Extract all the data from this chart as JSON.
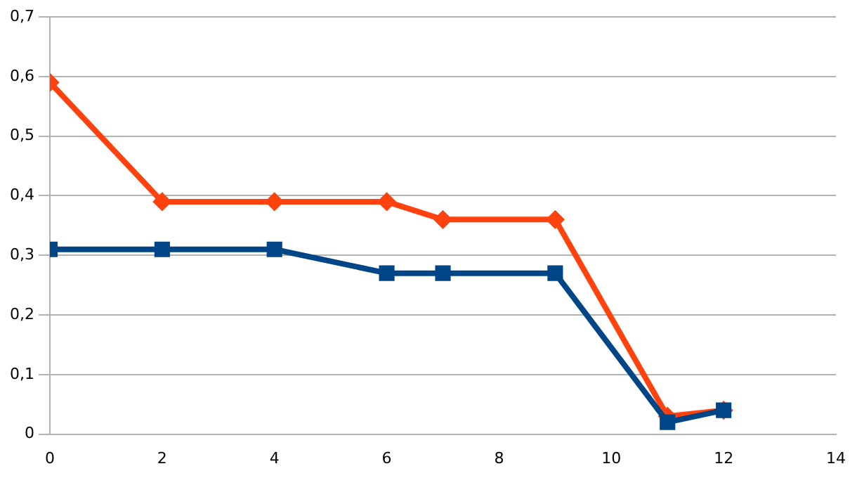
{
  "chart_data": {
    "type": "line",
    "xlim": [
      0,
      14
    ],
    "xticks": [
      0,
      2,
      4,
      6,
      8,
      10,
      12,
      14
    ],
    "ylim": [
      0,
      0.7
    ],
    "yticks": [
      0,
      {
        "value": 0.1,
        "label": "0,1"
      },
      {
        "value": 0.2,
        "label": "0,2"
      },
      {
        "value": 0.3,
        "label": "0,3"
      },
      {
        "value": 0.4,
        "label": "0,4"
      },
      {
        "value": 0.5,
        "label": "0,5"
      },
      {
        "value": 0.6,
        "label": "0,6"
      },
      {
        "value": 0.7,
        "label": "0,7"
      }
    ],
    "grid": "y",
    "legend": false,
    "series": [
      {
        "color": "#ff420e",
        "marker": "diamond",
        "x": [
          0,
          2,
          4,
          6,
          7,
          9,
          11,
          12
        ],
        "values": [
          0.59,
          0.39,
          0.39,
          0.39,
          0.36,
          0.36,
          0.03,
          0.04
        ]
      },
      {
        "color": "#004586",
        "marker": "square",
        "x": [
          0,
          2,
          4,
          6,
          7,
          9,
          11,
          12
        ],
        "values": [
          0.31,
          0.31,
          0.31,
          0.27,
          0.27,
          0.27,
          0.02,
          0.04
        ]
      }
    ]
  }
}
